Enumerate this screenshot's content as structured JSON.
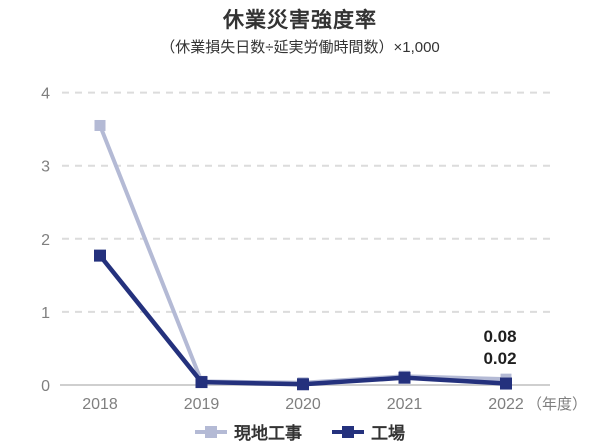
{
  "title": "休業災害強度率",
  "subtitle": "（休業損失日数÷延実労働時間数）×1,000",
  "x_axis_unit": "（年度）",
  "colors": {
    "series_genchi_koji": "#b4bad5",
    "series_kojo": "#24317d",
    "grid_line": "#dcdcdc",
    "axis_line": "#cfcfcf",
    "tick_text": "#7f7f7f",
    "annotation_text": "#1f1f1f",
    "background": "#ffffff"
  },
  "chart_data": {
    "type": "line",
    "title": "休業災害強度率",
    "subtitle": "（休業損失日数÷延実労働時間数）×1,000",
    "categories": [
      "2018",
      "2019",
      "2020",
      "2021",
      "2022"
    ],
    "series": [
      {
        "name": "現地工事",
        "values": [
          3.55,
          0.05,
          0.03,
          0.12,
          0.08
        ],
        "color": "#b4bad5"
      },
      {
        "name": "工場",
        "values": [
          1.77,
          0.04,
          0.01,
          0.1,
          0.02
        ],
        "color": "#24317d"
      }
    ],
    "xlabel": "年度",
    "ylabel": "",
    "ylim": [
      0,
      4
    ],
    "yticks": [
      0,
      1,
      2,
      3,
      4
    ],
    "grid": "horizontal-dashed",
    "legend_position": "bottom",
    "annotations": [
      {
        "category": "2022",
        "series": "現地工事",
        "text": "0.08"
      },
      {
        "category": "2022",
        "series": "工場",
        "text": "0.02"
      }
    ]
  },
  "legend": {
    "items": [
      {
        "label": "現地工事"
      },
      {
        "label": "工場"
      }
    ]
  }
}
